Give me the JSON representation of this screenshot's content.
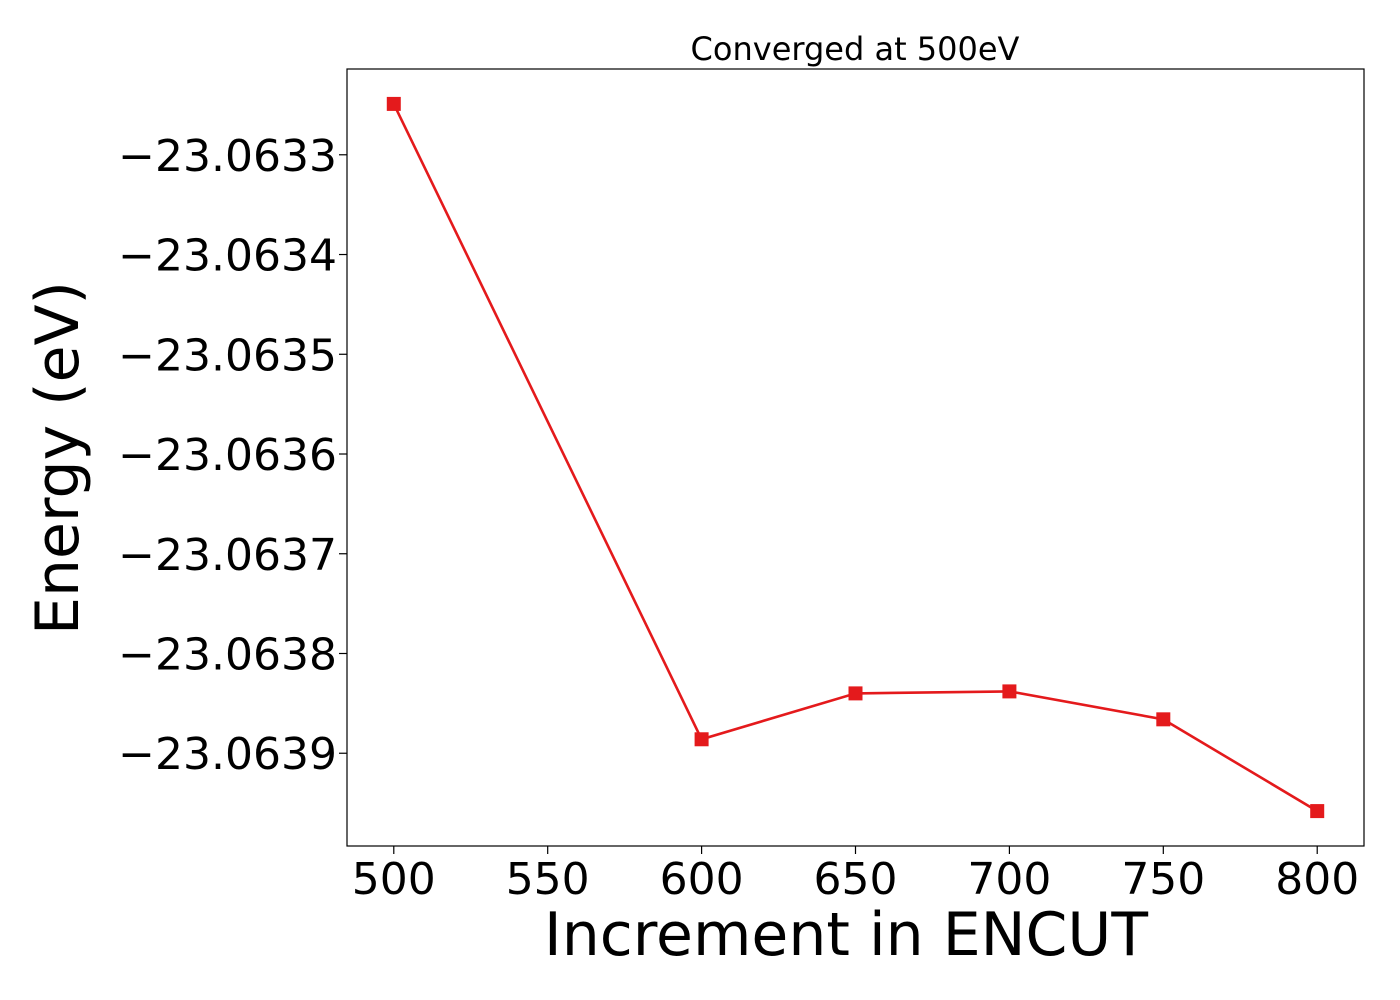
{
  "chart_data": {
    "type": "line",
    "title": "Converged at 500eV",
    "xlabel": "Increment in ENCUT",
    "ylabel": "Energy (eV)",
    "x": [
      500,
      600,
      650,
      700,
      750,
      800
    ],
    "x_ticks": [
      500,
      550,
      600,
      650,
      700,
      750,
      800
    ],
    "x_tick_labels": [
      "500",
      "550",
      "600",
      "650",
      "700",
      "750",
      "800"
    ],
    "xlim": [
      484.8,
      815.2
    ],
    "y_ticks": [
      -23.0633,
      -23.0634,
      -23.0635,
      -23.0636,
      -23.0637,
      -23.0638,
      -23.0639
    ],
    "y_tick_labels": [
      "−23.0633",
      "−23.0634",
      "−23.0635",
      "−23.0636",
      "−23.0637",
      "−23.0638",
      "−23.0639"
    ],
    "ylim": [
      -23.063993,
      -23.063214
    ],
    "series": [
      {
        "values": [
          -23.063249,
          -23.063886,
          -23.06384,
          -23.063838,
          -23.063866,
          -23.063958
        ],
        "color": "#e41a1c",
        "marker": "square"
      }
    ],
    "grid": false,
    "legend": "none"
  }
}
